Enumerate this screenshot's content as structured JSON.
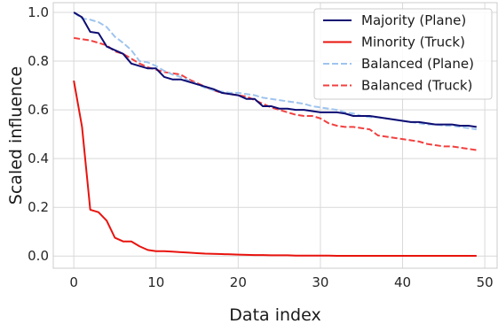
{
  "chart_data": {
    "type": "line",
    "title": "",
    "xlabel": "Data index",
    "ylabel": "Scaled influence",
    "xlim": [
      -2.5,
      51.5
    ],
    "ylim": [
      -0.05,
      1.04
    ],
    "xticks": [
      0,
      10,
      20,
      30,
      40,
      50
    ],
    "yticks": [
      0.0,
      0.2,
      0.4,
      0.6,
      0.8,
      1.0
    ],
    "xtick_labels": [
      "0",
      "10",
      "20",
      "30",
      "40",
      "50"
    ],
    "ytick_labels": [
      "0.0",
      "0.2",
      "0.4",
      "0.6",
      "0.8",
      "1.0"
    ],
    "grid": true,
    "legend_position": "top-right",
    "x": [
      0,
      1,
      2,
      3,
      4,
      5,
      6,
      7,
      8,
      9,
      10,
      11,
      12,
      13,
      14,
      15,
      16,
      17,
      18,
      19,
      20,
      21,
      22,
      23,
      24,
      25,
      26,
      27,
      28,
      29,
      30,
      31,
      32,
      33,
      34,
      35,
      36,
      37,
      38,
      39,
      40,
      41,
      42,
      43,
      44,
      45,
      46,
      47,
      48,
      49
    ],
    "series": [
      {
        "name": "Majority (Plane)",
        "color": "#0d0d73",
        "dash": "solid",
        "values": [
          1.0,
          0.98,
          0.92,
          0.915,
          0.86,
          0.845,
          0.83,
          0.79,
          0.78,
          0.77,
          0.77,
          0.735,
          0.725,
          0.725,
          0.715,
          0.705,
          0.695,
          0.685,
          0.67,
          0.665,
          0.66,
          0.645,
          0.645,
          0.615,
          0.615,
          0.605,
          0.605,
          0.6,
          0.6,
          0.595,
          0.59,
          0.59,
          0.59,
          0.585,
          0.575,
          0.575,
          0.575,
          0.57,
          0.565,
          0.56,
          0.555,
          0.55,
          0.55,
          0.545,
          0.54,
          0.54,
          0.54,
          0.535,
          0.535,
          0.53
        ]
      },
      {
        "name": "Minority (Truck)",
        "color": "#e8130e",
        "dash": "solid",
        "values": [
          0.72,
          0.53,
          0.19,
          0.18,
          0.145,
          0.075,
          0.06,
          0.06,
          0.04,
          0.025,
          0.02,
          0.02,
          0.018,
          0.016,
          0.014,
          0.012,
          0.01,
          0.009,
          0.008,
          0.007,
          0.006,
          0.005,
          0.004,
          0.004,
          0.003,
          0.003,
          0.003,
          0.002,
          0.002,
          0.002,
          0.002,
          0.002,
          0.001,
          0.001,
          0.001,
          0.001,
          0.001,
          0.001,
          0.001,
          0.001,
          0.001,
          0.001,
          0.001,
          0.001,
          0.001,
          0.001,
          0.001,
          0.001,
          0.001,
          0.001
        ]
      },
      {
        "name": "Balanced (Plane)",
        "color": "#9ec4ee",
        "dash": "dashed",
        "values": [
          1.0,
          0.975,
          0.97,
          0.96,
          0.94,
          0.9,
          0.875,
          0.845,
          0.8,
          0.795,
          0.78,
          0.76,
          0.745,
          0.735,
          0.72,
          0.705,
          0.69,
          0.68,
          0.675,
          0.67,
          0.67,
          0.665,
          0.66,
          0.65,
          0.645,
          0.64,
          0.635,
          0.63,
          0.625,
          0.615,
          0.61,
          0.605,
          0.6,
          0.59,
          0.585,
          0.575,
          0.57,
          0.57,
          0.565,
          0.56,
          0.555,
          0.55,
          0.545,
          0.54,
          0.54,
          0.535,
          0.535,
          0.53,
          0.525,
          0.52
        ]
      },
      {
        "name": "Balanced (Truck)",
        "color": "#f24040",
        "dash": "dashed",
        "values": [
          0.895,
          0.89,
          0.885,
          0.875,
          0.865,
          0.84,
          0.83,
          0.81,
          0.79,
          0.775,
          0.765,
          0.755,
          0.75,
          0.745,
          0.725,
          0.71,
          0.695,
          0.68,
          0.67,
          0.665,
          0.66,
          0.655,
          0.64,
          0.625,
          0.61,
          0.6,
          0.59,
          0.58,
          0.575,
          0.575,
          0.565,
          0.545,
          0.535,
          0.53,
          0.53,
          0.525,
          0.52,
          0.495,
          0.49,
          0.485,
          0.48,
          0.475,
          0.47,
          0.46,
          0.455,
          0.45,
          0.45,
          0.445,
          0.44,
          0.435
        ]
      }
    ]
  }
}
